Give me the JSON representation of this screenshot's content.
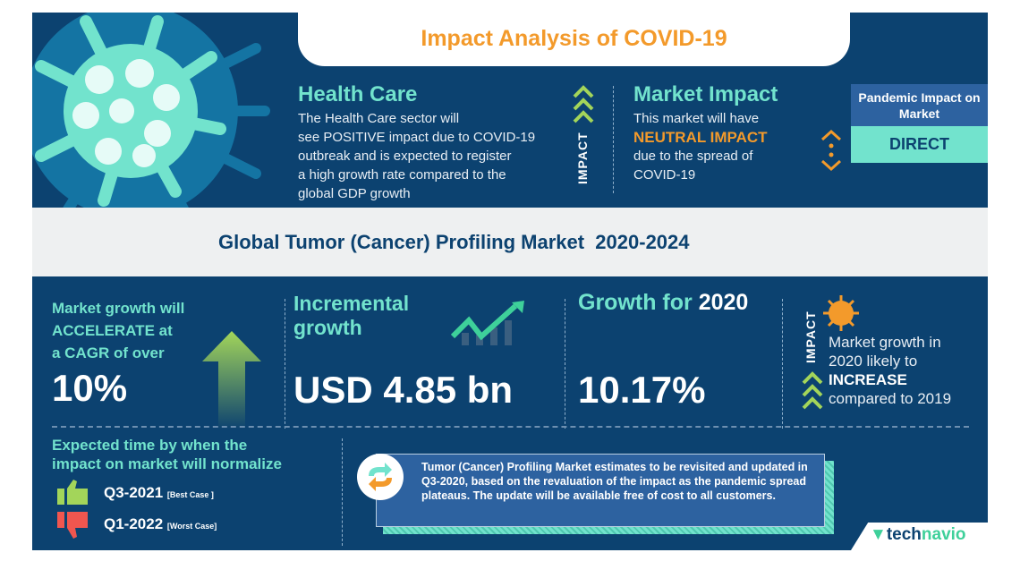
{
  "header": {
    "title": "Impact Analysis of COVID-19"
  },
  "health_care": {
    "title": "Health Care",
    "text": [
      "The Health Care sector will",
      "see POSITIVE impact due to COVID-19",
      "outbreak and is expected to register",
      "a high growth rate compared to the",
      "global GDP growth"
    ],
    "impact_label": "IMPACT"
  },
  "market_impact": {
    "title": "Market Impact",
    "line1": "This market will have",
    "highlight": "NEUTRAL IMPACT",
    "line2": "due to the spread of",
    "line3": "COVID-19"
  },
  "pandemic": {
    "label": "Pandemic Impact on Market",
    "value": "DIRECT"
  },
  "market_title": "Global Tumor (Cancer) Profiling Market  2020-2024",
  "cagr": {
    "lines": [
      "Market growth will",
      "ACCELERATE at",
      "a CAGR of over"
    ],
    "value": "10%"
  },
  "incremental": {
    "lines": [
      "Incremental",
      "growth"
    ],
    "value": "USD 4.85 bn"
  },
  "growth2020": {
    "label": "Growth for",
    "year": "2020",
    "value": "10.17%"
  },
  "impact2020": {
    "impact_label": "IMPACT",
    "line1": "Market growth in",
    "line2": "2020 likely to",
    "highlight": "INCREASE",
    "line3": "compared to 2019"
  },
  "normalize": {
    "title_lines": [
      "Expected time by when the",
      "impact on market will normalize"
    ],
    "best": {
      "quarter": "Q3-2021",
      "case": "[Best Case ]"
    },
    "worst": {
      "quarter": "Q1-2022",
      "case": "[Worst Case]"
    }
  },
  "note": "Tumor (Cancer) Profiling Market estimates to be revisited and updated in Q3-2020, based on the revaluation of the impact as the pandemic spread plateaus. The update will be available free of cost to all customers.",
  "brand": {
    "tech": "tech",
    "navio": "navio"
  },
  "colors": {
    "navy": "#0c4270",
    "teal": "#72e3cd",
    "orange": "#f39a2b",
    "green": "#a3d55a",
    "red": "#f0564f"
  }
}
